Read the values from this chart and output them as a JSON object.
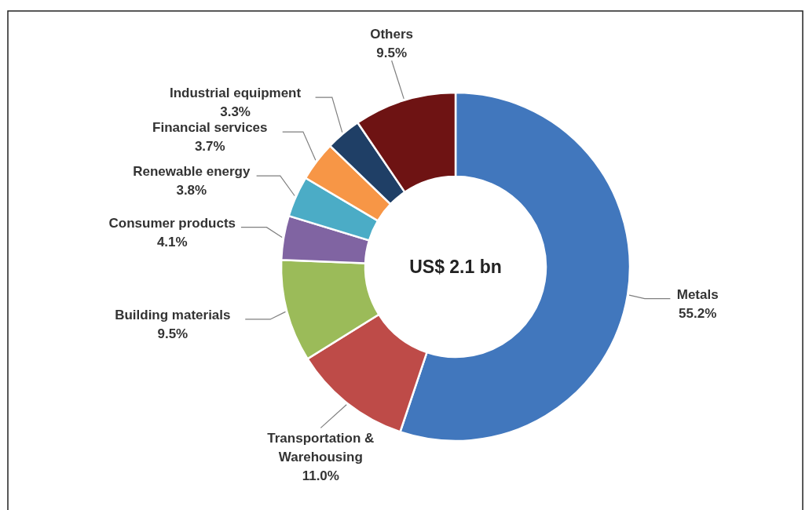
{
  "chart_data": {
    "type": "donut",
    "categories": [
      "Metals",
      "Transportation & Warehousing",
      "Building materials",
      "Consumer products",
      "Renewable energy",
      "Financial services",
      "Industrial equipment",
      "Others"
    ],
    "values": [
      55.2,
      11.0,
      9.5,
      4.1,
      3.8,
      3.7,
      3.3,
      9.5
    ],
    "value_labels": [
      "55.2%",
      "11.0%",
      "9.5%",
      "4.1%",
      "3.8%",
      "3.7%",
      "3.3%",
      "9.5%"
    ],
    "colors": [
      "#4177bd",
      "#be4b48",
      "#9bbb59",
      "#8064a2",
      "#4bacc6",
      "#f79646",
      "#1f3f66",
      "#6e1313"
    ],
    "annotations": [
      "US$ 2.1 bn"
    ]
  }
}
